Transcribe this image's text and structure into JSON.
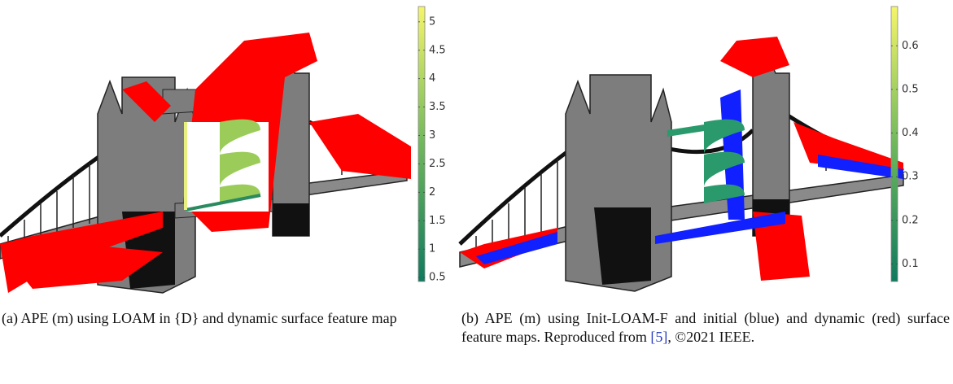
{
  "panels": [
    {
      "label": "(a)",
      "caption": "APE (m) using LOAM in {D} and dynamic surface feature map",
      "colorbar": {
        "range": [
          0.43,
          5.27
        ],
        "ticks": [
          0.5,
          1,
          1.5,
          2,
          2.5,
          3,
          3.5,
          4,
          4.5,
          5
        ]
      }
    },
    {
      "label": "(b)",
      "caption": "APE (m) using Init-LOAM-F and initial (blue) and dynamic (red) surface feature maps. Reproduced from",
      "reference": "[5]",
      "caption_end": ", ©2021 IEEE.",
      "colorbar": {
        "range": [
          0.06,
          0.69
        ],
        "ticks": [
          0.1,
          0.2,
          0.3,
          0.4,
          0.5,
          0.6
        ]
      }
    }
  ]
}
